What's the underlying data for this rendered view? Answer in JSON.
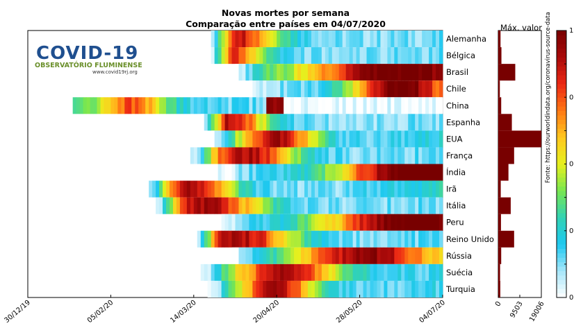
{
  "chart_data": {
    "type": "heatmap",
    "title_line1": "Novas mortes por semana",
    "title_line2": "Comparação entre países em 04/07/2020",
    "max_header": "Máx. valor",
    "source_note": "Fonte: https://ourworldindata.org/coronavirus-source-data",
    "x_tick_labels": [
      "30/12/19",
      "05/02/20",
      "14/03/20",
      "20/04/20",
      "28/05/20",
      "04/07/20"
    ],
    "max_axis_ticks": [
      "0",
      "9503",
      "19006"
    ],
    "colorbar_ticks": [
      "1",
      "0",
      "0",
      "0",
      "0",
      "0",
      "0",
      "0",
      "0"
    ],
    "colormap": [
      "#ffffff",
      "#a6e6fa",
      "#1ec8f0",
      "#32d2b4",
      "#78e650",
      "#e6f01e",
      "#ffc81e",
      "#ff7814",
      "#eb2814",
      "#aa0a0a",
      "#780000"
    ],
    "countries": [
      {
        "name": "Alemanha",
        "start": 0.44,
        "peak": 0.49,
        "width": 0.12,
        "late": 0.05,
        "max": 1000
      },
      {
        "name": "Bélgica",
        "start": 0.44,
        "peak": 0.47,
        "width": 0.1,
        "late": 0.05,
        "max": 1400
      },
      {
        "name": "Brasil",
        "start": 0.5,
        "peak": 0.86,
        "width": 0.25,
        "late": 0.85,
        "max": 7500
      },
      {
        "name": "Chile",
        "start": 0.53,
        "peak": 0.89,
        "width": 0.12,
        "late": 0.7,
        "max": 700
      },
      {
        "name": "China",
        "start": 0.11,
        "peak": 0.6,
        "width": 0.02,
        "late": 0.0,
        "max": 1300
      },
      {
        "name": "Espanha",
        "start": 0.42,
        "peak": 0.48,
        "width": 0.1,
        "late": 0.05,
        "max": 6000
      },
      {
        "name": "EUA",
        "start": 0.44,
        "peak": 0.6,
        "width": 0.1,
        "late": 0.35,
        "max": 19006
      },
      {
        "name": "França",
        "start": 0.39,
        "peak": 0.53,
        "width": 0.12,
        "late": 0.15,
        "max": 7000
      },
      {
        "name": "Índia",
        "start": 0.46,
        "peak": 0.92,
        "width": 0.2,
        "late": 0.85,
        "max": 4500
      },
      {
        "name": "Irã",
        "start": 0.28,
        "peak": 0.4,
        "width": 0.1,
        "late": 0.55,
        "max": 1100
      },
      {
        "name": "Itália",
        "start": 0.31,
        "peak": 0.43,
        "width": 0.14,
        "late": 0.1,
        "max": 5500
      },
      {
        "name": "Peru",
        "start": 0.47,
        "peak": 0.9,
        "width": 0.22,
        "late": 0.8,
        "max": 1200
      },
      {
        "name": "Reino Unido",
        "start": 0.4,
        "peak": 0.51,
        "width": 0.14,
        "late": 0.15,
        "max": 7000
      },
      {
        "name": "Rússia",
        "start": 0.49,
        "peak": 0.8,
        "width": 0.18,
        "late": 0.65,
        "max": 1300
      },
      {
        "name": "Suécia",
        "start": 0.42,
        "peak": 0.62,
        "width": 0.14,
        "late": 0.25,
        "max": 800
      },
      {
        "name": "Turquia",
        "start": 0.43,
        "peak": 0.6,
        "width": 0.1,
        "late": 0.25,
        "max": 900
      }
    ]
  },
  "logo": {
    "title": "COVID-19",
    "subtitle": "OBSERVATÓRIO FLUMINENSE",
    "url": "www.covid19rj.org"
  }
}
